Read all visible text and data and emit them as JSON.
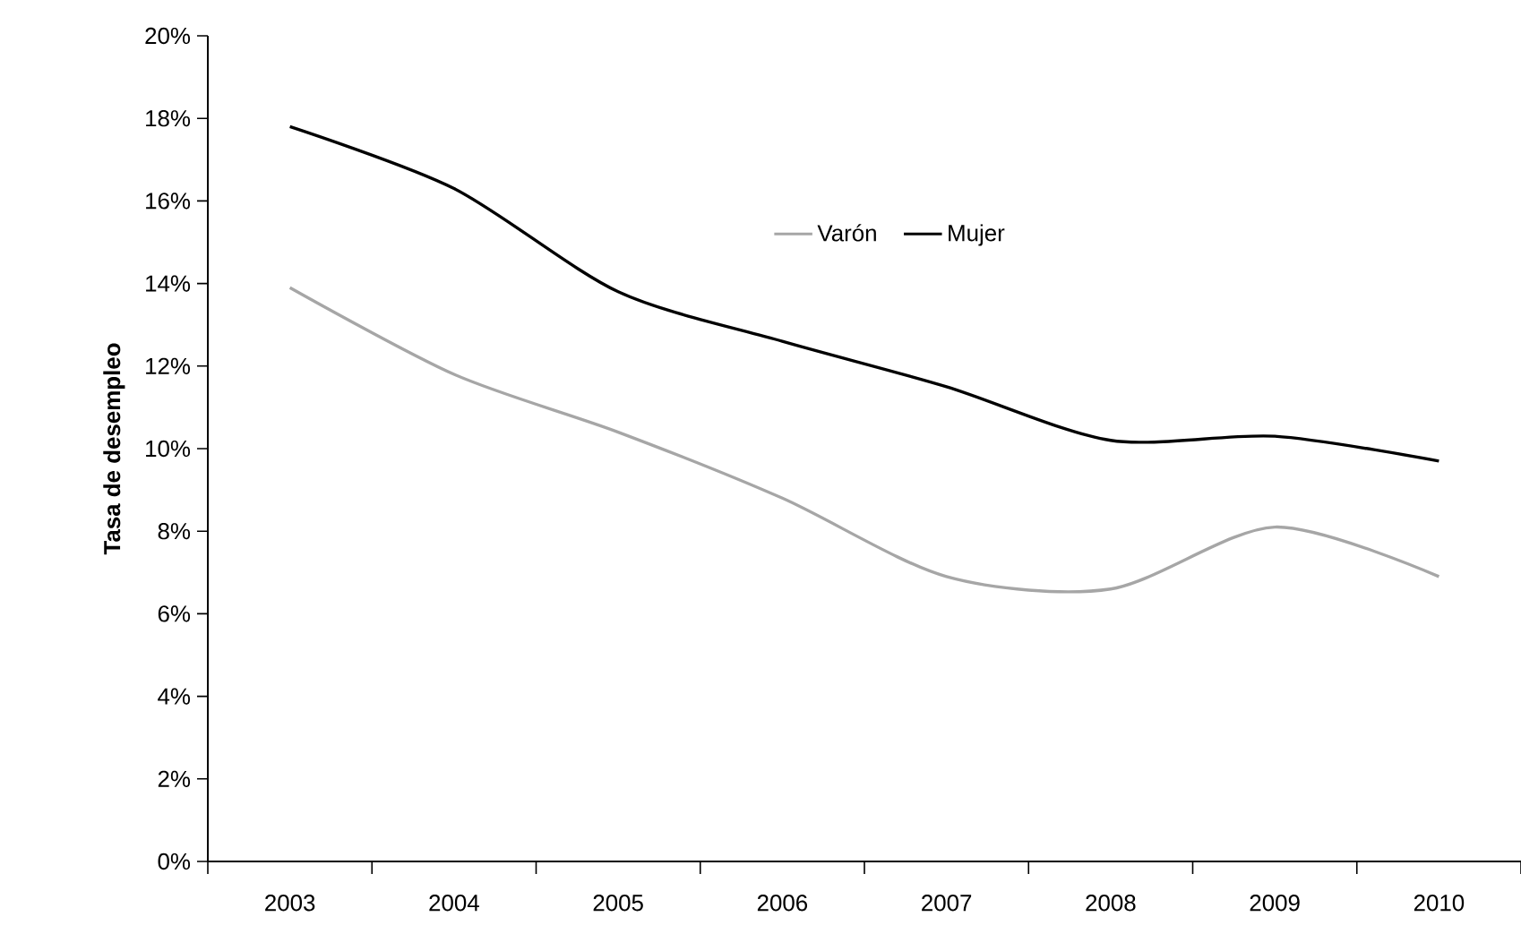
{
  "chart_data": {
    "type": "line",
    "ylabel": "Tasa de desempleo",
    "categories": [
      "2003",
      "2004",
      "2005",
      "2006",
      "2007",
      "2008",
      "2009",
      "2010"
    ],
    "series": [
      {
        "name": "Varón",
        "color": "#a6a6a6",
        "values": [
          13.9,
          11.8,
          10.4,
          8.8,
          6.9,
          6.6,
          8.1,
          6.9
        ]
      },
      {
        "name": "Mujer",
        "color": "#000000",
        "values": [
          17.8,
          16.3,
          13.8,
          12.6,
          11.5,
          10.2,
          10.3,
          9.7
        ]
      }
    ],
    "ylim": [
      0,
      20
    ],
    "yticks": [
      {
        "value": 0,
        "label": "0%"
      },
      {
        "value": 2,
        "label": "2%"
      },
      {
        "value": 4,
        "label": "4%"
      },
      {
        "value": 6,
        "label": "6%"
      },
      {
        "value": 8,
        "label": "8%"
      },
      {
        "value": 10,
        "label": "10%"
      },
      {
        "value": 12,
        "label": "12%"
      },
      {
        "value": 14,
        "label": "14%"
      },
      {
        "value": 16,
        "label": "16%"
      },
      {
        "value": 18,
        "label": "18%"
      },
      {
        "value": 20,
        "label": "20%"
      }
    ],
    "grid": false,
    "legend": "top",
    "marker": "none",
    "line_style": "solid"
  }
}
